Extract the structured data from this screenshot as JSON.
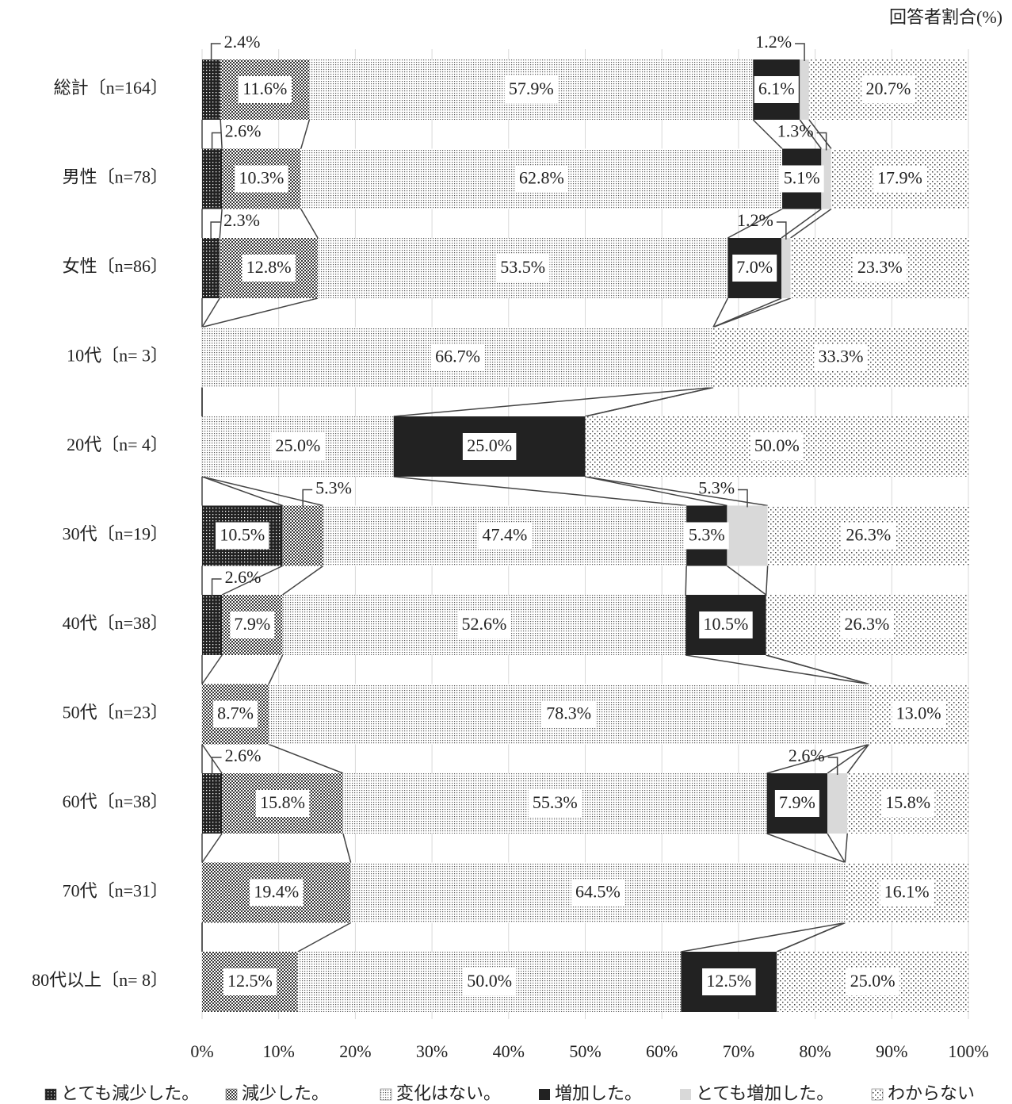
{
  "chart_data": {
    "type": "stacked-bar-horizontal",
    "axis_label": "回答者割合(%)",
    "categories": [
      "総計〔n=164〕",
      "男性〔n=78〕",
      "女性〔n=86〕",
      "10代〔n= 3〕",
      "20代〔n= 4〕",
      "30代〔n=19〕",
      "40代〔n=38〕",
      "50代〔n=23〕",
      "60代〔n=38〕",
      "70代〔n=31〕",
      "80代以上〔n= 8〕"
    ],
    "xlim": [
      0,
      100
    ],
    "xticks": [
      {
        "value": 0,
        "label": "0%"
      },
      {
        "value": 10,
        "label": "10%"
      },
      {
        "value": 20,
        "label": "20%"
      },
      {
        "value": 30,
        "label": "30%"
      },
      {
        "value": 40,
        "label": "40%"
      },
      {
        "value": 50,
        "label": "50%"
      },
      {
        "value": 60,
        "label": "60%"
      },
      {
        "value": 70,
        "label": "70%"
      },
      {
        "value": 80,
        "label": "80%"
      },
      {
        "value": 90,
        "label": "90%"
      },
      {
        "value": 100,
        "label": "100%"
      }
    ],
    "grid": true,
    "legend": "bottom",
    "series": [
      {
        "name": "とても減少した。",
        "color": "#222222",
        "pattern": "dark-check",
        "values": [
          2.4,
          2.6,
          2.3,
          null,
          null,
          10.5,
          2.6,
          null,
          2.6,
          null,
          null
        ],
        "value_labels": [
          "2.4%",
          "2.6%",
          "2.3%",
          null,
          null,
          "10.5%",
          "2.6%",
          null,
          "2.6%",
          null,
          null
        ]
      },
      {
        "name": "減少した。",
        "color": "#555555",
        "pattern": "check",
        "values": [
          11.6,
          10.3,
          12.8,
          null,
          null,
          5.3,
          7.9,
          8.7,
          15.8,
          19.4,
          12.5
        ],
        "value_labels": [
          "11.6%",
          "10.3%",
          "12.8%",
          null,
          null,
          "5.3%",
          "7.9%",
          "8.7%",
          "15.8%",
          "19.4%",
          "12.5%"
        ]
      },
      {
        "name": "変化はない。",
        "color": "#888888",
        "pattern": "dots",
        "values": [
          57.9,
          62.8,
          53.5,
          66.7,
          25.0,
          47.4,
          52.6,
          78.3,
          55.3,
          64.5,
          50.0
        ],
        "value_labels": [
          "57.9%",
          "62.8%",
          "53.5%",
          "66.7%",
          "25.0%",
          "47.4%",
          "52.6%",
          "78.3%",
          "55.3%",
          "64.5%",
          "50.0%"
        ]
      },
      {
        "name": "増加した。",
        "color": "#222222",
        "pattern": "solid",
        "values": [
          6.1,
          5.1,
          7.0,
          null,
          25.0,
          5.3,
          10.5,
          null,
          7.9,
          null,
          12.5
        ],
        "value_labels": [
          "6.1%",
          "5.1%",
          "7.0%",
          null,
          "25.0%",
          "5.3%",
          "10.5%",
          null,
          "7.9%",
          null,
          "12.5%"
        ]
      },
      {
        "name": "とても増加した。",
        "color": "#d9d9d9",
        "pattern": "solid",
        "values": [
          1.2,
          1.3,
          1.2,
          null,
          null,
          5.3,
          null,
          null,
          2.6,
          null,
          null
        ],
        "value_labels": [
          "1.2%",
          "1.3%",
          "1.2%",
          null,
          null,
          "5.3%",
          null,
          null,
          "2.6%",
          null,
          null
        ]
      },
      {
        "name": "わからない",
        "color": "#aaaaaa",
        "pattern": "sparse-dots",
        "values": [
          20.7,
          17.9,
          23.3,
          33.3,
          50.0,
          26.3,
          26.3,
          13.0,
          15.8,
          16.1,
          25.0
        ],
        "value_labels": [
          "20.7%",
          "17.9%",
          "23.3%",
          "33.3%",
          "50.0%",
          "26.3%",
          "26.3%",
          "13.0%",
          "15.8%",
          "16.1%",
          "25.0%"
        ]
      }
    ]
  }
}
